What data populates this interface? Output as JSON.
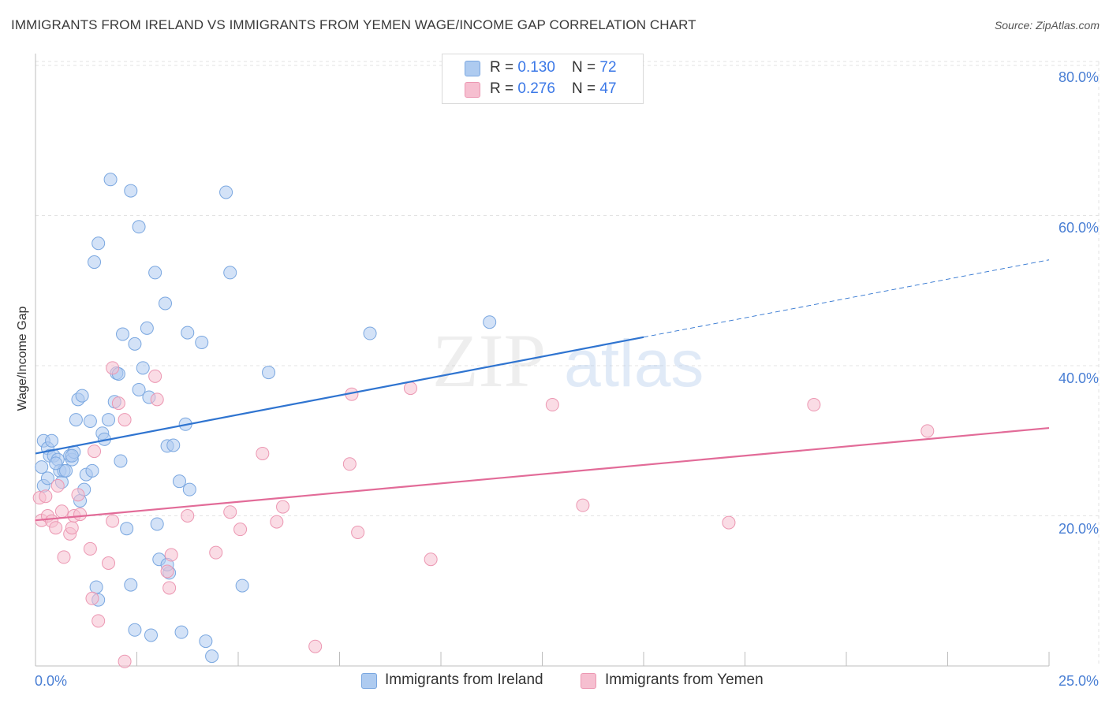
{
  "title": "IMMIGRANTS FROM IRELAND VS IMMIGRANTS FROM YEMEN WAGE/INCOME GAP CORRELATION CHART",
  "source": "Source: ZipAtlas.com",
  "watermark": {
    "zip": "ZIP",
    "atlas": "atlas"
  },
  "legend": {
    "ireland": {
      "r_label": "R = ",
      "r_value": "0.130",
      "n_label": "N = ",
      "n_value": "72"
    },
    "yemen": {
      "r_label": "R = ",
      "r_value": "0.276",
      "n_label": "N = ",
      "n_value": "47"
    }
  },
  "colors": {
    "ireland_fill": "#aecbf0",
    "ireland_stroke": "#7aa7e0",
    "ireland_line": "#2f74d0",
    "yemen_fill": "#f6bfd0",
    "yemen_stroke": "#ec97b2",
    "yemen_line": "#e26b98",
    "tick": "#4a7fd4",
    "grid": "#e3e3e3"
  },
  "chart_data": {
    "type": "scatter",
    "title": "IMMIGRANTS FROM IRELAND VS IMMIGRANTS FROM YEMEN WAGE/INCOME GAP CORRELATION CHART",
    "xlabel": "",
    "ylabel": "Wage/Income Gap",
    "xlim": [
      0,
      25
    ],
    "ylim": [
      0,
      82
    ],
    "x_tick_labels": [
      "0.0%",
      "25.0%"
    ],
    "y_ticks": [
      20,
      40,
      60,
      80
    ],
    "y_tick_labels": [
      "20.0%",
      "40.0%",
      "60.0%",
      "80.0%"
    ],
    "grid": true,
    "legend_position": "bottom",
    "series": [
      {
        "name": "Immigrants from Ireland",
        "trend": {
          "x0": 0,
          "y0": 28.3,
          "x1": 15,
          "y1": 43.8,
          "dash_to_x": 25,
          "dash_to_y": 54.1
        },
        "points": [
          [
            0.15,
            26.5
          ],
          [
            0.2,
            24.0
          ],
          [
            0.2,
            30.0
          ],
          [
            0.3,
            29.0
          ],
          [
            0.35,
            28.0
          ],
          [
            0.4,
            30.0
          ],
          [
            0.45,
            28.0
          ],
          [
            0.55,
            27.5
          ],
          [
            0.6,
            26.0
          ],
          [
            0.65,
            24.5
          ],
          [
            0.7,
            26.0
          ],
          [
            0.75,
            26.0
          ],
          [
            0.85,
            28.0
          ],
          [
            0.9,
            27.5
          ],
          [
            0.95,
            28.5
          ],
          [
            1.0,
            32.8
          ],
          [
            1.05,
            35.5
          ],
          [
            1.1,
            22.0
          ],
          [
            1.15,
            36.0
          ],
          [
            1.2,
            23.5
          ],
          [
            1.25,
            25.5
          ],
          [
            1.35,
            32.6
          ],
          [
            1.4,
            26.0
          ],
          [
            1.45,
            53.8
          ],
          [
            1.55,
            56.3
          ],
          [
            1.65,
            31.0
          ],
          [
            1.7,
            30.2
          ],
          [
            1.8,
            32.8
          ],
          [
            1.85,
            64.8
          ],
          [
            1.95,
            35.2
          ],
          [
            2.0,
            39.0
          ],
          [
            2.05,
            38.9
          ],
          [
            2.1,
            27.3
          ],
          [
            2.15,
            44.2
          ],
          [
            2.25,
            18.3
          ],
          [
            2.35,
            10.8
          ],
          [
            2.35,
            63.3
          ],
          [
            2.45,
            4.8
          ],
          [
            2.45,
            42.9
          ],
          [
            2.55,
            36.8
          ],
          [
            2.55,
            58.5
          ],
          [
            2.65,
            39.7
          ],
          [
            2.75,
            45.0
          ],
          [
            2.8,
            35.8
          ],
          [
            2.85,
            4.1
          ],
          [
            2.95,
            52.4
          ],
          [
            3.0,
            18.9
          ],
          [
            3.05,
            14.2
          ],
          [
            3.2,
            48.3
          ],
          [
            3.25,
            29.3
          ],
          [
            3.3,
            12.4
          ],
          [
            3.4,
            29.4
          ],
          [
            3.55,
            24.6
          ],
          [
            3.6,
            4.5
          ],
          [
            3.7,
            32.2
          ],
          [
            3.75,
            44.4
          ],
          [
            3.8,
            23.5
          ],
          [
            4.1,
            43.1
          ],
          [
            4.2,
            3.3
          ],
          [
            4.35,
            1.3
          ],
          [
            4.7,
            63.1
          ],
          [
            4.8,
            52.4
          ],
          [
            5.1,
            10.7
          ],
          [
            5.75,
            39.1
          ],
          [
            8.25,
            44.3
          ],
          [
            11.2,
            45.8
          ],
          [
            1.5,
            10.5
          ],
          [
            1.55,
            8.8
          ],
          [
            3.25,
            13.5
          ],
          [
            0.9,
            28.0
          ],
          [
            0.3,
            25.0
          ],
          [
            0.5,
            27.0
          ]
        ]
      },
      {
        "name": "Immigrants from Yemen",
        "trend": {
          "x0": 0,
          "y0": 19.4,
          "x1": 25,
          "y1": 31.7
        },
        "points": [
          [
            0.1,
            22.4
          ],
          [
            0.15,
            19.4
          ],
          [
            0.25,
            22.6
          ],
          [
            0.3,
            20.0
          ],
          [
            0.4,
            19.3
          ],
          [
            0.5,
            18.4
          ],
          [
            0.55,
            24.0
          ],
          [
            0.65,
            20.6
          ],
          [
            0.7,
            14.5
          ],
          [
            0.85,
            17.6
          ],
          [
            0.9,
            18.4
          ],
          [
            0.95,
            20.0
          ],
          [
            1.05,
            22.8
          ],
          [
            1.1,
            20.2
          ],
          [
            1.35,
            15.6
          ],
          [
            1.4,
            9.0
          ],
          [
            1.45,
            28.6
          ],
          [
            1.55,
            6.0
          ],
          [
            1.8,
            13.7
          ],
          [
            1.9,
            19.3
          ],
          [
            1.9,
            39.7
          ],
          [
            2.05,
            35.0
          ],
          [
            2.2,
            0.6
          ],
          [
            2.2,
            32.8
          ],
          [
            2.95,
            38.6
          ],
          [
            3.0,
            35.5
          ],
          [
            3.25,
            12.6
          ],
          [
            3.3,
            10.4
          ],
          [
            3.35,
            14.8
          ],
          [
            3.75,
            20.0
          ],
          [
            4.45,
            15.1
          ],
          [
            4.8,
            20.5
          ],
          [
            5.05,
            18.2
          ],
          [
            5.6,
            28.3
          ],
          [
            5.95,
            19.2
          ],
          [
            6.1,
            21.2
          ],
          [
            6.9,
            2.6
          ],
          [
            7.75,
            26.9
          ],
          [
            7.8,
            36.2
          ],
          [
            7.95,
            17.8
          ],
          [
            9.25,
            37.0
          ],
          [
            9.75,
            14.2
          ],
          [
            12.75,
            34.8
          ],
          [
            13.5,
            21.4
          ],
          [
            17.1,
            19.1
          ],
          [
            19.2,
            34.8
          ],
          [
            22.0,
            31.3
          ]
        ]
      }
    ]
  },
  "axis": {
    "ylabel": "Wage/Income Gap",
    "x_left": "0.0%",
    "x_right": "25.0%",
    "y_ticks": [
      "20.0%",
      "40.0%",
      "60.0%",
      "80.0%"
    ]
  },
  "bottom_legend": {
    "ireland": "Immigrants from Ireland",
    "yemen": "Immigrants from Yemen"
  }
}
